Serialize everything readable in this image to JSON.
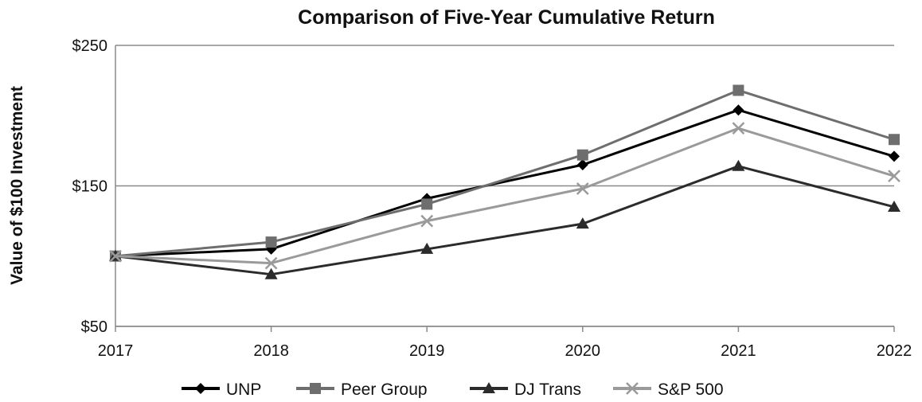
{
  "chart_data": {
    "type": "line",
    "title": "Comparison of Five-Year Cumulative Return",
    "xlabel": "",
    "ylabel": "Value of $100 Investment",
    "x": [
      "2017",
      "2018",
      "2019",
      "2020",
      "2021",
      "2022"
    ],
    "ylim": [
      50,
      250
    ],
    "yticks": [
      50,
      150,
      250
    ],
    "ytick_labels": [
      "$50",
      "$150",
      "$250"
    ],
    "grid": "horizontal",
    "legend_position": "bottom",
    "series": [
      {
        "name": "UNP",
        "values": [
          100,
          105,
          141,
          165,
          204,
          171
        ],
        "color": "#000000",
        "marker": "diamond"
      },
      {
        "name": "Peer Group",
        "values": [
          100,
          110,
          137,
          172,
          218,
          183
        ],
        "color": "#6e6e6e",
        "marker": "square"
      },
      {
        "name": "DJ Trans",
        "values": [
          100,
          87,
          105,
          123,
          164,
          135
        ],
        "color": "#2b2b2b",
        "marker": "triangle"
      },
      {
        "name": "S&P 500",
        "values": [
          100,
          95,
          125,
          148,
          191,
          157
        ],
        "color": "#9a9a9a",
        "marker": "x"
      }
    ]
  }
}
